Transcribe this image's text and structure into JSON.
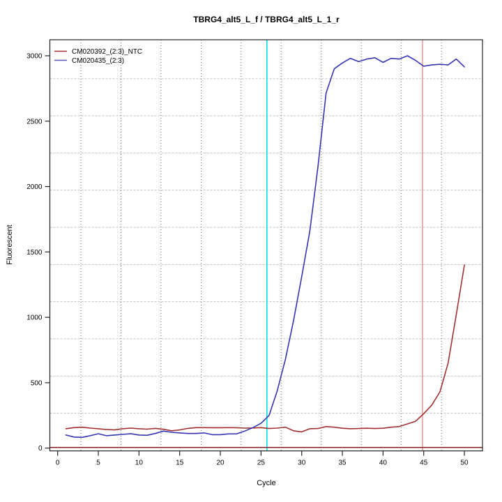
{
  "title": "TBRG4_alt5_L_f / TBRG4_alt5_L_1_r",
  "axes": {
    "x_label": "Cycle",
    "y_label": "Fluorescent",
    "x_ticks": [
      0,
      5,
      10,
      15,
      20,
      25,
      30,
      35,
      40,
      45,
      50
    ],
    "y_ticks": [
      0,
      500,
      1000,
      1500,
      2000,
      2500,
      3000
    ]
  },
  "legend": {
    "items": [
      {
        "label": "CM020392_(2:3)_NTC",
        "color": "#9e3434"
      },
      {
        "label": "CM020435_(2:3)",
        "color": "#5a5ab4"
      }
    ]
  },
  "colors": {
    "red_curve": "#a03030",
    "blue_curve": "#3434b2",
    "threshold_line": "#8b2020",
    "cyan_vline": "#00dfe8",
    "salmon_vline": "#f29c9c",
    "grid_dotted": "#6e6e6e",
    "grid_dashed": "#c2c2c2",
    "axis": "#222222"
  },
  "chart_data": {
    "type": "line",
    "x": [
      1,
      2,
      3,
      4,
      5,
      6,
      7,
      8,
      9,
      10,
      11,
      12,
      13,
      14,
      15,
      16,
      17,
      18,
      19,
      20,
      21,
      22,
      23,
      24,
      25,
      26,
      27,
      28,
      29,
      30,
      31,
      32,
      33,
      34,
      35,
      36,
      37,
      38,
      39,
      40,
      41,
      42,
      43,
      44,
      45,
      46,
      47,
      48,
      49,
      50
    ],
    "series": [
      {
        "name": "CM020392_(2:3)_NTC",
        "color": "#a03030",
        "values": [
          148,
          157,
          160,
          153,
          148,
          142,
          139,
          148,
          153,
          148,
          145,
          151,
          144,
          133,
          139,
          151,
          157,
          157,
          156,
          156,
          157,
          156,
          153,
          154,
          157,
          150,
          153,
          160,
          132,
          124,
          148,
          150,
          165,
          160,
          152,
          148,
          150,
          152,
          150,
          152,
          160,
          165,
          185,
          205,
          263,
          330,
          430,
          650,
          1020,
          1400
        ]
      },
      {
        "name": "CM020435_(2:3)",
        "color": "#3434b2",
        "values": [
          100,
          85,
          82,
          95,
          110,
          95,
          100,
          105,
          110,
          100,
          98,
          112,
          130,
          121,
          116,
          112,
          112,
          116,
          103,
          103,
          109,
          109,
          130,
          157,
          190,
          250,
          440,
          680,
          975,
          1310,
          1660,
          2150,
          2715,
          2900,
          2945,
          2980,
          2955,
          2975,
          2985,
          2950,
          2980,
          2975,
          3000,
          2965,
          2920,
          2930,
          2935,
          2930,
          2975,
          2915
        ]
      }
    ],
    "vlines": [
      {
        "x": 25.72,
        "color": "#00dfe8",
        "name": "ct-threshold-cyan"
      },
      {
        "x": 44.85,
        "color": "#f29c9c",
        "name": "ct-threshold-salmon"
      }
    ],
    "hlines": [
      {
        "y": 5,
        "color": "#8b2020",
        "name": "baseline-zero"
      }
    ],
    "grid": {
      "vertical_x": [
        2.85,
        7.78,
        12.7,
        17.63,
        22.55,
        27.48,
        32.4,
        37.33,
        42.25,
        47.18
      ],
      "horizontal_y": [
        2825,
        2541,
        2257,
        1973,
        1688,
        1404,
        1120,
        836,
        551,
        267
      ]
    },
    "xlabel": "Cycle",
    "ylabel": "Fluorescent",
    "xlim": [
      0,
      50
    ],
    "ylim": [
      0,
      3000
    ],
    "legend_position": "topleft"
  }
}
